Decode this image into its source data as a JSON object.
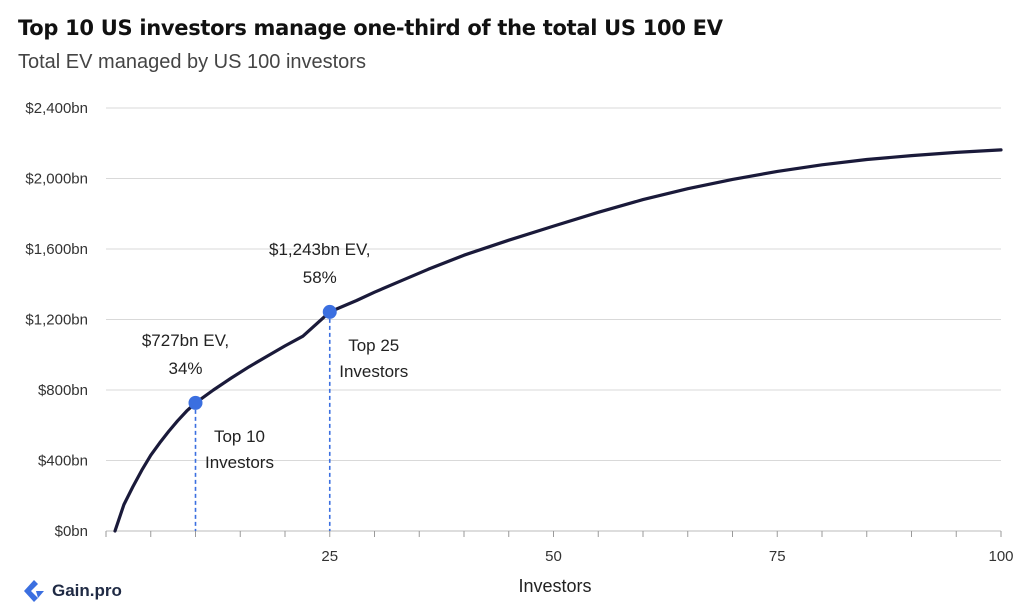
{
  "header": {
    "title": "Top 10 US investors manage one-third of the total US 100 EV",
    "subtitle": "Total EV managed by US 100 investors"
  },
  "brand": {
    "name": "Gain.pro",
    "color": "#3b6fe0"
  },
  "chart_data": {
    "type": "line",
    "title": "Top 10 US investors manage one-third of the total US 100 EV",
    "subtitle": "Total EV managed by US 100 investors",
    "xlabel": "Investors",
    "ylabel": "",
    "xlim": [
      0,
      100
    ],
    "ylim": [
      0,
      2400
    ],
    "x_ticks": [
      25,
      50,
      75,
      100
    ],
    "y_ticks": [
      0,
      400,
      800,
      1200,
      1600,
      2000,
      2400
    ],
    "y_tick_labels": [
      "$0bn",
      "$400bn",
      "$800bn",
      "$1,200bn",
      "$1,600bn",
      "$2,000bn",
      "$2,400bn"
    ],
    "grid": "horizontal",
    "line_color": "#1a1a3a",
    "marker_color": "#3b6fe0",
    "series": [
      {
        "x": [
          1,
          2,
          3,
          4,
          5,
          6,
          7,
          8,
          9,
          10,
          12,
          14,
          16,
          18,
          20,
          22,
          25,
          28,
          30,
          33,
          36,
          40,
          45,
          50,
          55,
          60,
          65,
          70,
          75,
          80,
          85,
          90,
          95,
          100
        ],
        "values": [
          0,
          150,
          250,
          345,
          430,
          500,
          565,
          625,
          680,
          727,
          800,
          868,
          932,
          992,
          1050,
          1105,
          1243,
          1308,
          1355,
          1420,
          1485,
          1565,
          1650,
          1730,
          1808,
          1880,
          1942,
          1995,
          2040,
          2078,
          2108,
          2130,
          2148,
          2162
        ]
      }
    ],
    "annotations": [
      {
        "x": 10,
        "y": 727,
        "label_line1": "$727bn EV,",
        "label_line2": "34%",
        "ref_line1": "Top 10",
        "ref_line2": "Investors"
      },
      {
        "x": 25,
        "y": 1243,
        "label_line1": "$1,243bn EV,",
        "label_line2": "58%",
        "ref_line1": "Top 25",
        "ref_line2": "Investors"
      }
    ]
  }
}
